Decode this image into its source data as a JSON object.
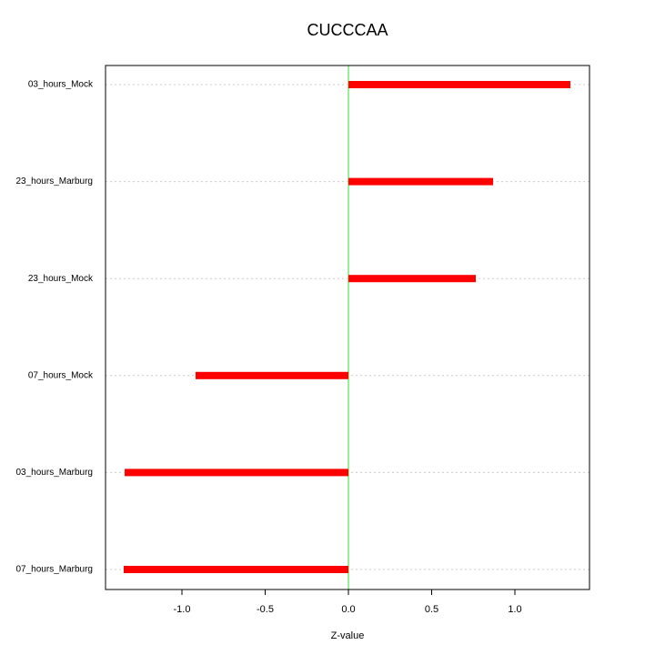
{
  "chart_data": {
    "type": "hbar",
    "title": "CUCCCAA",
    "x_label": "Z-value",
    "categories": [
      "03_hours_Mock",
      "23_hours_Marburg",
      "23_hours_Mock",
      "07_hours_Mock",
      "03_hours_Marburg",
      "07_hours_Marburg"
    ],
    "values": [
      1.333,
      0.869,
      0.765,
      -0.918,
      -1.344,
      -1.35
    ],
    "color": "#ff0000",
    "zero_line_color": "#33dd33",
    "grid_color": "#cccccc",
    "xlim": [
      -1.459,
      1.448
    ],
    "xticks": [
      {
        "value": -1,
        "label": "-1.0"
      },
      {
        "value": -0.5,
        "label": "-0.5"
      },
      {
        "value": 0,
        "label": "0.0"
      },
      {
        "value": 0.5,
        "label": "0.5"
      },
      {
        "value": 1,
        "label": "1.0"
      }
    ],
    "grid": true
  }
}
